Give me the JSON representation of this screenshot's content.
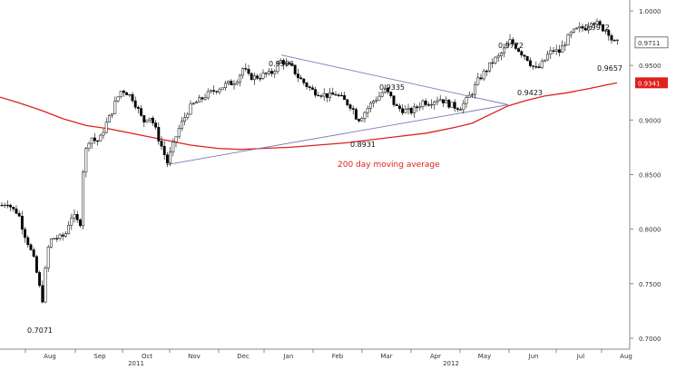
{
  "chart_data": {
    "type": "candlestick",
    "title": "",
    "xlabel": "",
    "ylabel": "",
    "ylim": [
      0.69,
      1.01
    ],
    "y_ticks": [
      "1.0000",
      "0.9500",
      "0.9000",
      "0.8500",
      "0.8000",
      "0.7500",
      "0.7000"
    ],
    "y_tick_values": [
      1.0,
      0.95,
      0.9,
      0.85,
      0.8,
      0.75,
      0.7
    ],
    "months": [
      "Aug",
      "Sep",
      "Oct",
      "Nov",
      "Dec",
      "Jan",
      "Feb",
      "Mar",
      "Apr",
      "May",
      "Jun",
      "Jul",
      "Aug"
    ],
    "years": [
      "2011",
      "2012"
    ],
    "last_price": {
      "label": "0.9711",
      "value": 0.9711
    },
    "ma_last": {
      "label": "0.9341",
      "value": 0.9341,
      "color": "#e0201c"
    },
    "annotations": [
      {
        "label": "0.7071",
        "value": 0.7071
      },
      {
        "label": "0.9596",
        "value": 0.9596
      },
      {
        "label": "0.9335",
        "value": 0.9335
      },
      {
        "label": "0.8931",
        "value": 0.8931
      },
      {
        "label": "0.9772",
        "value": 0.9772
      },
      {
        "label": "0.9423",
        "value": 0.9423
      },
      {
        "label": "0.9972",
        "value": 0.9972
      },
      {
        "label": "0.9657",
        "value": 0.9657
      }
    ],
    "moving_average_label": "200 day moving average",
    "moving_average": [
      [
        0,
        0.921
      ],
      [
        20,
        0.916
      ],
      [
        45,
        0.909
      ],
      [
        70,
        0.901
      ],
      [
        95,
        0.895
      ],
      [
        120,
        0.892
      ],
      [
        150,
        0.887
      ],
      [
        180,
        0.882
      ],
      [
        210,
        0.877
      ],
      [
        240,
        0.874
      ],
      [
        265,
        0.873
      ],
      [
        290,
        0.874
      ],
      [
        320,
        0.875
      ],
      [
        350,
        0.877
      ],
      [
        380,
        0.879
      ],
      [
        410,
        0.882
      ],
      [
        440,
        0.885
      ],
      [
        470,
        0.888
      ],
      [
        500,
        0.893
      ],
      [
        520,
        0.897
      ],
      [
        540,
        0.905
      ],
      [
        560,
        0.913
      ],
      [
        580,
        0.918
      ],
      [
        600,
        0.922
      ],
      [
        625,
        0.925
      ],
      [
        650,
        0.929
      ],
      [
        668,
        0.932
      ],
      [
        680,
        0.934
      ]
    ],
    "trend_lines": [
      {
        "from": [
          310,
          0.9596
        ],
        "to": [
          560,
          0.914
        ]
      },
      {
        "from": [
          183,
          0.859
        ],
        "to": [
          560,
          0.914
        ]
      }
    ],
    "price_path": [
      [
        2,
        0.822
      ],
      [
        8,
        0.825
      ],
      [
        14,
        0.818
      ],
      [
        20,
        0.815
      ],
      [
        26,
        0.798
      ],
      [
        32,
        0.785
      ],
      [
        38,
        0.77
      ],
      [
        44,
        0.745
      ],
      [
        47,
        0.735
      ],
      [
        52,
        0.78
      ],
      [
        56,
        0.79
      ],
      [
        60,
        0.792
      ],
      [
        66,
        0.792
      ],
      [
        72,
        0.795
      ],
      [
        78,
        0.812
      ],
      [
        84,
        0.81
      ],
      [
        88,
        0.8
      ],
      [
        92,
        0.86
      ],
      [
        96,
        0.878
      ],
      [
        100,
        0.885
      ],
      [
        106,
        0.88
      ],
      [
        110,
        0.882
      ],
      [
        116,
        0.895
      ],
      [
        122,
        0.905
      ],
      [
        128,
        0.918
      ],
      [
        134,
        0.928
      ],
      [
        140,
        0.925
      ],
      [
        146,
        0.92
      ],
      [
        152,
        0.91
      ],
      [
        158,
        0.898
      ],
      [
        164,
        0.905
      ],
      [
        170,
        0.895
      ],
      [
        176,
        0.88
      ],
      [
        180,
        0.872
      ],
      [
        184,
        0.86
      ],
      [
        190,
        0.875
      ],
      [
        196,
        0.89
      ],
      [
        202,
        0.9
      ],
      [
        208,
        0.91
      ],
      [
        214,
        0.915
      ],
      [
        220,
        0.918
      ],
      [
        226,
        0.922
      ],
      [
        232,
        0.925
      ],
      [
        238,
        0.928
      ],
      [
        244,
        0.93
      ],
      [
        250,
        0.933
      ],
      [
        256,
        0.934
      ],
      [
        262,
        0.938
      ],
      [
        268,
        0.948
      ],
      [
        274,
        0.94
      ],
      [
        280,
        0.939
      ],
      [
        286,
        0.94
      ],
      [
        292,
        0.942
      ],
      [
        298,
        0.942
      ],
      [
        304,
        0.948
      ],
      [
        310,
        0.955
      ],
      [
        316,
        0.95
      ],
      [
        322,
        0.948
      ],
      [
        328,
        0.94
      ],
      [
        334,
        0.935
      ],
      [
        340,
        0.93
      ],
      [
        346,
        0.926
      ],
      [
        352,
        0.925
      ],
      [
        358,
        0.923
      ],
      [
        364,
        0.922
      ],
      [
        370,
        0.924
      ],
      [
        376,
        0.92
      ],
      [
        382,
        0.916
      ],
      [
        388,
        0.912
      ],
      [
        394,
        0.9
      ],
      [
        400,
        0.905
      ],
      [
        406,
        0.912
      ],
      [
        412,
        0.918
      ],
      [
        418,
        0.922
      ],
      [
        424,
        0.928
      ],
      [
        430,
        0.922
      ],
      [
        436,
        0.912
      ],
      [
        442,
        0.91
      ],
      [
        448,
        0.908
      ],
      [
        454,
        0.908
      ],
      [
        460,
        0.912
      ],
      [
        466,
        0.917
      ],
      [
        472,
        0.916
      ],
      [
        478,
        0.918
      ],
      [
        484,
        0.92
      ],
      [
        490,
        0.917
      ],
      [
        496,
        0.914
      ],
      [
        502,
        0.912
      ],
      [
        508,
        0.912
      ],
      [
        514,
        0.918
      ],
      [
        520,
        0.925
      ],
      [
        526,
        0.935
      ],
      [
        532,
        0.942
      ],
      [
        538,
        0.948
      ],
      [
        544,
        0.955
      ],
      [
        550,
        0.958
      ],
      [
        556,
        0.965
      ],
      [
        562,
        0.972
      ],
      [
        568,
        0.968
      ],
      [
        574,
        0.962
      ],
      [
        580,
        0.958
      ],
      [
        586,
        0.95
      ],
      [
        592,
        0.946
      ],
      [
        598,
        0.952
      ],
      [
        604,
        0.96
      ],
      [
        610,
        0.964
      ],
      [
        616,
        0.962
      ],
      [
        622,
        0.97
      ],
      [
        628,
        0.978
      ],
      [
        634,
        0.982
      ],
      [
        640,
        0.984
      ],
      [
        646,
        0.985
      ],
      [
        652,
        0.992
      ],
      [
        658,
        0.988
      ],
      [
        664,
        0.984
      ],
      [
        670,
        0.982
      ],
      [
        674,
        0.974
      ],
      [
        678,
        0.97
      ],
      [
        682,
        0.971
      ]
    ]
  }
}
